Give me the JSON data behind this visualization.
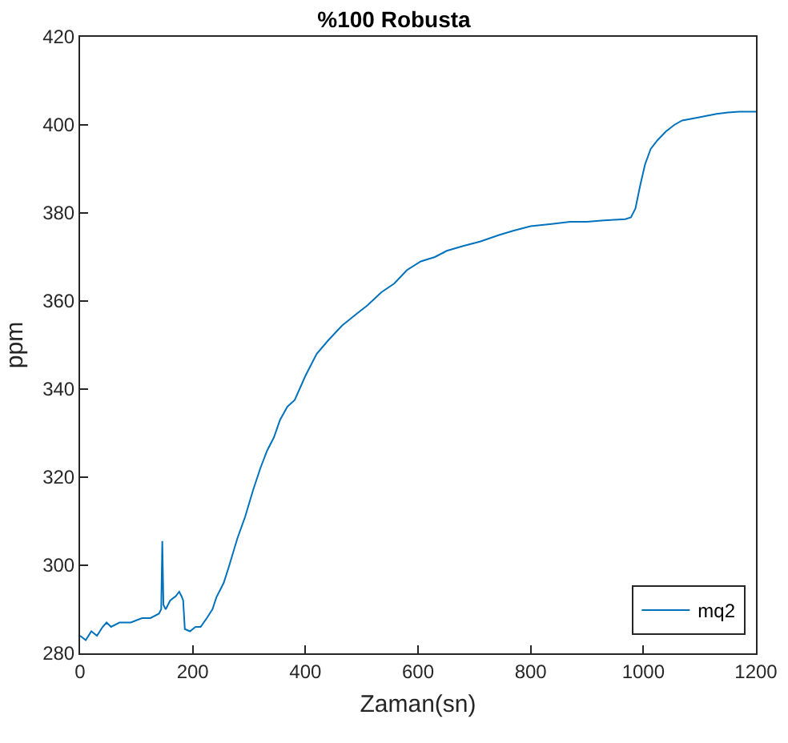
{
  "chart_data": {
    "type": "line",
    "title": "%100 Robusta",
    "xlabel": "Zaman(sn)",
    "ylabel": "ppm",
    "xlim": [
      0,
      1200
    ],
    "xticks": [
      0,
      200,
      400,
      600,
      800,
      1000,
      1200
    ],
    "ylim": [
      280,
      420
    ],
    "yticks": [
      280,
      300,
      320,
      340,
      360,
      380,
      400,
      420
    ],
    "grid": false,
    "legend": "bottom right",
    "marker": "none",
    "line_style": "solid",
    "series": [
      {
        "name": "mq2",
        "color": "#0072bd",
        "x": [
          0,
          10,
          20,
          30,
          40,
          47,
          55,
          70,
          90,
          110,
          125,
          140,
          144,
          146,
          148,
          152,
          160,
          170,
          176,
          180,
          183,
          186,
          195,
          205,
          214,
          225,
          235,
          242,
          255,
          265,
          279,
          293,
          307,
          320,
          332,
          344,
          355,
          368,
          381,
          400,
          420,
          440,
          465,
          490,
          510,
          535,
          558,
          580,
          605,
          630,
          651,
          680,
          710,
          744,
          770,
          800,
          837,
          870,
          900,
          930,
          968,
          978,
          986,
          994,
          1003,
          1013,
          1025,
          1040,
          1055,
          1069,
          1090,
          1110,
          1130,
          1150,
          1170,
          1191,
          1200
        ],
        "values": [
          284,
          283,
          285,
          284,
          286,
          287,
          286,
          287,
          287,
          288,
          288,
          289,
          290,
          305.5,
          291,
          290,
          292,
          293,
          294,
          293,
          292,
          285.5,
          285,
          286,
          286,
          288,
          290,
          292.7,
          296,
          300,
          306,
          311,
          317,
          322,
          326,
          329,
          333,
          336,
          337.5,
          343,
          348,
          351,
          354.4,
          357,
          359,
          362,
          364,
          367,
          369,
          370,
          371.4,
          372.5,
          373.5,
          375,
          376,
          377,
          377.5,
          378,
          378,
          378.3,
          378.6,
          379,
          381,
          386,
          391,
          394.5,
          396.5,
          398.5,
          400,
          401,
          401.5,
          402,
          402.5,
          402.8,
          403,
          403,
          403
        ]
      }
    ]
  }
}
